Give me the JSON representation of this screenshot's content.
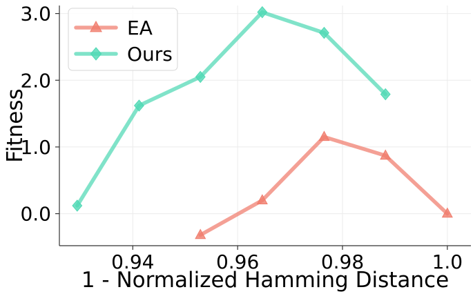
{
  "chart_data": {
    "type": "line",
    "title": "",
    "xlabel": "1 - Normalized Hamming Distance",
    "ylabel": "Fitness",
    "xlim": [
      0.926,
      1.0045
    ],
    "ylim": [
      -0.48,
      3.12
    ],
    "xticks": [
      0.94,
      0.96,
      0.98,
      1.0
    ],
    "xtick_labels": [
      "0.94",
      "0.96",
      "0.98",
      "1.0"
    ],
    "yticks": [
      0.0,
      1.0,
      2.0,
      3.0
    ],
    "ytick_labels": [
      "0.0",
      "1.0",
      "2.0",
      "3.0"
    ],
    "grid": true,
    "legend_position": "top-left",
    "series": [
      {
        "name": "EA",
        "color": "#f07c6c",
        "marker": "triangle",
        "x": [
          0.9529,
          0.9647,
          0.9765,
          0.9882,
          1.0
        ],
        "y": [
          -0.32,
          0.2,
          1.15,
          0.87,
          0.0
        ]
      },
      {
        "name": "Ours",
        "color": "#4fd8b4",
        "marker": "diamond",
        "x": [
          0.9294,
          0.9412,
          0.9529,
          0.9647,
          0.9765,
          0.9882
        ],
        "y": [
          0.12,
          1.62,
          2.05,
          3.02,
          2.71,
          1.79
        ]
      }
    ]
  }
}
